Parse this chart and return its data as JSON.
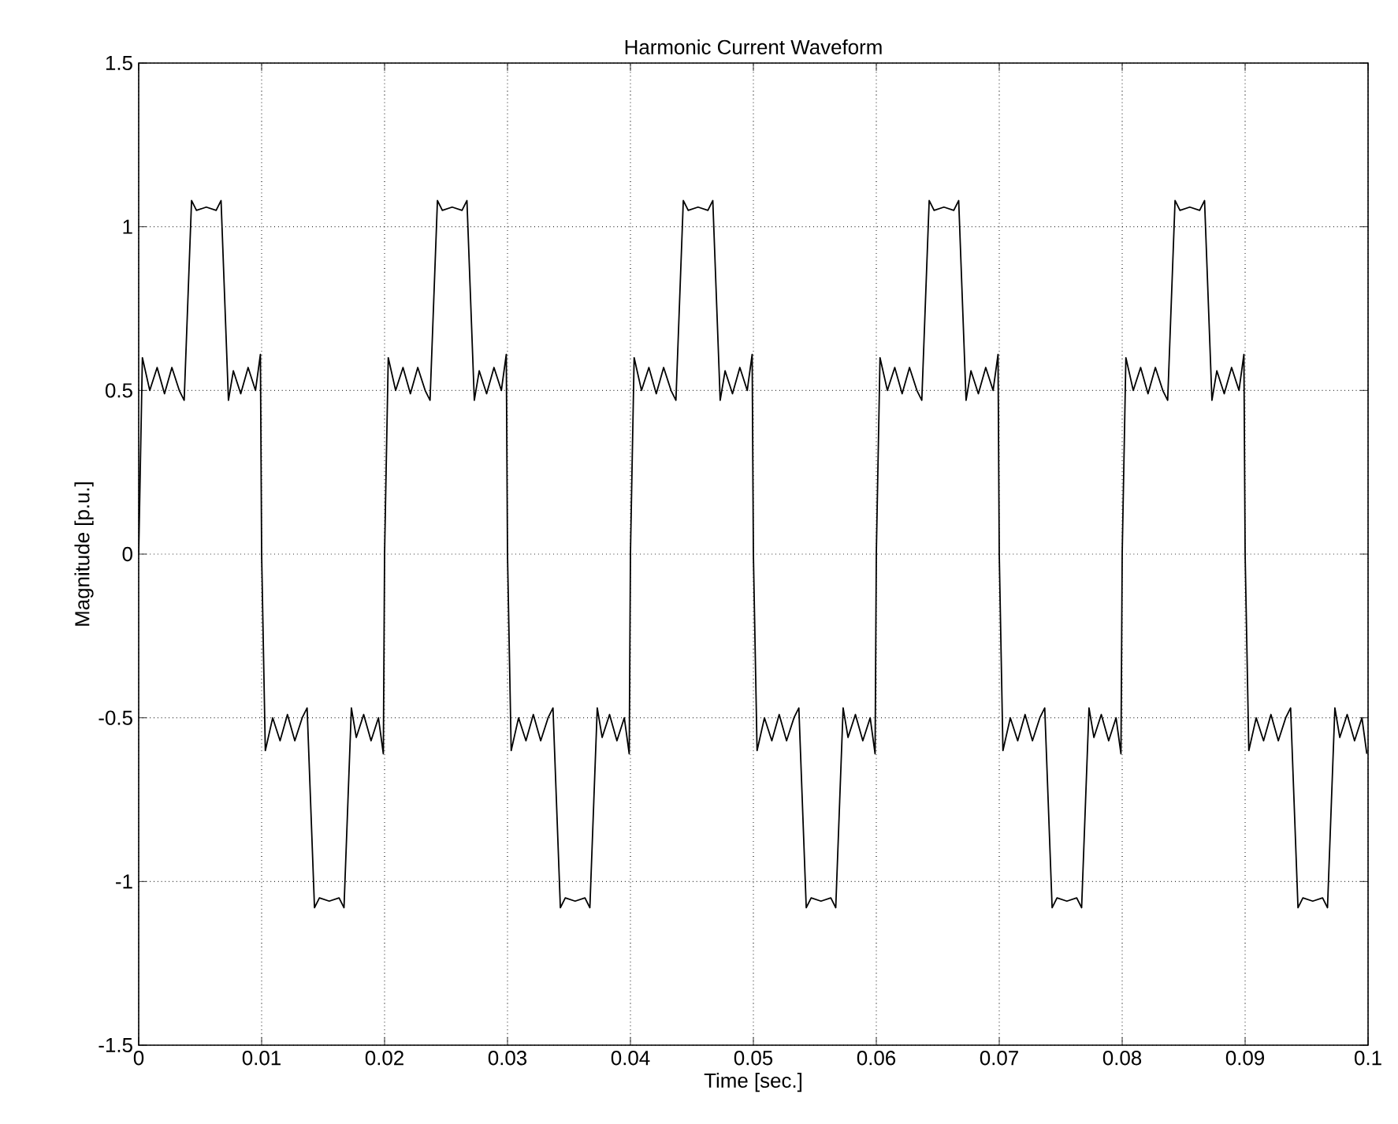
{
  "chart_data": {
    "type": "line",
    "title": "Harmonic Current Waveform",
    "xlabel": "Time [sec.]",
    "ylabel": "Magnitude [p.u.]",
    "xlim": [
      0,
      0.1
    ],
    "ylim": [
      -1.5,
      1.5
    ],
    "xticks": [
      0,
      0.01,
      0.02,
      0.03,
      0.04,
      0.05,
      0.06,
      0.07,
      0.08,
      0.09,
      0.1
    ],
    "yticks": [
      -1.5,
      -1,
      -0.5,
      0,
      0.5,
      1,
      1.5
    ],
    "grid": true,
    "series": [
      {
        "color": "#000000",
        "line_style": "solid",
        "x": [
          0,
          0.0003,
          0.0009,
          0.0015,
          0.0021,
          0.0027,
          0.0033,
          0.0037,
          0.0043,
          0.0047,
          0.0055,
          0.0063,
          0.0067,
          0.0073,
          0.0077,
          0.0083,
          0.0089,
          0.0095,
          0.0099,
          0.01,
          0.0103,
          0.0109,
          0.0115,
          0.0121,
          0.0127,
          0.0133,
          0.0137,
          0.0143,
          0.0147,
          0.0155,
          0.0163,
          0.0167,
          0.0173,
          0.0177,
          0.0183,
          0.0189,
          0.0195,
          0.0199,
          0.02,
          0.0203,
          0.0209,
          0.0215,
          0.0221,
          0.0227,
          0.0233,
          0.0237,
          0.0243,
          0.0247,
          0.0255,
          0.0263,
          0.0267,
          0.0273,
          0.0277,
          0.0283,
          0.0289,
          0.0295,
          0.0299,
          0.03,
          0.0303,
          0.0309,
          0.0315,
          0.0321,
          0.0327,
          0.0333,
          0.0337,
          0.0343,
          0.0347,
          0.0355,
          0.0363,
          0.0367,
          0.0373,
          0.0377,
          0.0383,
          0.0389,
          0.0395,
          0.0399,
          0.04,
          0.0403,
          0.0409,
          0.0415,
          0.0421,
          0.0427,
          0.0433,
          0.0437,
          0.0443,
          0.0447,
          0.0455,
          0.0463,
          0.0467,
          0.0473,
          0.0477,
          0.0483,
          0.0489,
          0.0495,
          0.0499,
          0.05,
          0.0503,
          0.0509,
          0.0515,
          0.0521,
          0.0527,
          0.0533,
          0.0537,
          0.0543,
          0.0547,
          0.0555,
          0.0563,
          0.0567,
          0.0573,
          0.0577,
          0.0583,
          0.0589,
          0.0595,
          0.0599,
          0.06,
          0.0603,
          0.0609,
          0.0615,
          0.0621,
          0.0627,
          0.0633,
          0.0637,
          0.0643,
          0.0647,
          0.0655,
          0.0663,
          0.0667,
          0.0673,
          0.0677,
          0.0683,
          0.0689,
          0.0695,
          0.0699,
          0.07,
          0.0703,
          0.0709,
          0.0715,
          0.0721,
          0.0727,
          0.0733,
          0.0737,
          0.0743,
          0.0747,
          0.0755,
          0.0763,
          0.0767,
          0.0773,
          0.0777,
          0.0783,
          0.0789,
          0.0795,
          0.0799,
          0.08,
          0.0803,
          0.0809,
          0.0815,
          0.0821,
          0.0827,
          0.0833,
          0.0837,
          0.0843,
          0.0847,
          0.0855,
          0.0863,
          0.0867,
          0.0873,
          0.0877,
          0.0883,
          0.0889,
          0.0895,
          0.0899,
          0.09,
          0.0903,
          0.0909,
          0.0915,
          0.0921,
          0.0927,
          0.0933,
          0.0937,
          0.0943,
          0.0947,
          0.0955,
          0.0963,
          0.0967,
          0.0973,
          0.0977,
          0.0983,
          0.0989,
          0.0995,
          0.0999
        ],
        "values": [
          0,
          0.6,
          0.5,
          0.57,
          0.49,
          0.57,
          0.5,
          0.47,
          1.08,
          1.05,
          1.06,
          1.05,
          1.08,
          0.47,
          0.56,
          0.49,
          0.57,
          0.5,
          0.61,
          0,
          -0.6,
          -0.5,
          -0.57,
          -0.49,
          -0.57,
          -0.5,
          -0.47,
          -1.08,
          -1.05,
          -1.06,
          -1.05,
          -1.08,
          -0.47,
          -0.56,
          -0.49,
          -0.57,
          -0.5,
          -0.61,
          0,
          0.6,
          0.5,
          0.57,
          0.49,
          0.57,
          0.5,
          0.47,
          1.08,
          1.05,
          1.06,
          1.05,
          1.08,
          0.47,
          0.56,
          0.49,
          0.57,
          0.5,
          0.61,
          0,
          -0.6,
          -0.5,
          -0.57,
          -0.49,
          -0.57,
          -0.5,
          -0.47,
          -1.08,
          -1.05,
          -1.06,
          -1.05,
          -1.08,
          -0.47,
          -0.56,
          -0.49,
          -0.57,
          -0.5,
          -0.61,
          0,
          0.6,
          0.5,
          0.57,
          0.49,
          0.57,
          0.5,
          0.47,
          1.08,
          1.05,
          1.06,
          1.05,
          1.08,
          0.47,
          0.56,
          0.49,
          0.57,
          0.5,
          0.61,
          0,
          -0.6,
          -0.5,
          -0.57,
          -0.49,
          -0.57,
          -0.5,
          -0.47,
          -1.08,
          -1.05,
          -1.06,
          -1.05,
          -1.08,
          -0.47,
          -0.56,
          -0.49,
          -0.57,
          -0.5,
          -0.61,
          0,
          0.6,
          0.5,
          0.57,
          0.49,
          0.57,
          0.5,
          0.47,
          1.08,
          1.05,
          1.06,
          1.05,
          1.08,
          0.47,
          0.56,
          0.49,
          0.57,
          0.5,
          0.61,
          0,
          -0.6,
          -0.5,
          -0.57,
          -0.49,
          -0.57,
          -0.5,
          -0.47,
          -1.08,
          -1.05,
          -1.06,
          -1.05,
          -1.08,
          -0.47,
          -0.56,
          -0.49,
          -0.57,
          -0.5,
          -0.61,
          0,
          0.6,
          0.5,
          0.57,
          0.49,
          0.57,
          0.5,
          0.47,
          1.08,
          1.05,
          1.06,
          1.05,
          1.08,
          0.47,
          0.56,
          0.49,
          0.57,
          0.5,
          0.61,
          0,
          -0.6,
          -0.5,
          -0.57,
          -0.49,
          -0.57,
          -0.5,
          -0.47,
          -1.08,
          -1.05,
          -1.06,
          -1.05,
          -1.08,
          -0.47,
          -0.56,
          -0.49,
          -0.57,
          -0.5,
          -0.61
        ]
      }
    ]
  }
}
